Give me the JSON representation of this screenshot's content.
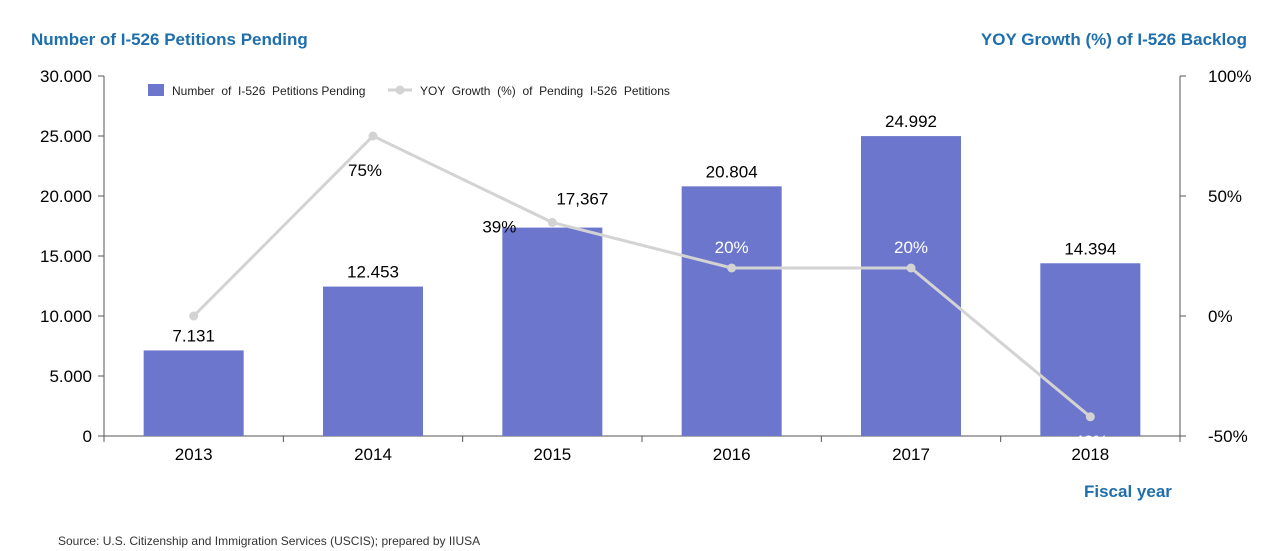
{
  "titles": {
    "left_axis_title": "Number of I-526 Petitions Pending",
    "right_axis_title": "YOY Growth (%) of I-526 Backlog",
    "x_axis_title": "Fiscal year",
    "source": "Source: U.S. Citizenship and Immigration Services (USCIS);  prepared  by IIUSA"
  },
  "colors": {
    "bar": "#6b76cc",
    "line": "#d3d3d3",
    "title_blue": "#1f6fad"
  },
  "chart_data": {
    "type": "bar",
    "categories": [
      "2013",
      "2014",
      "2015",
      "2016",
      "2017",
      "2018"
    ],
    "series": [
      {
        "name": "Number  of  I-526  Petitions Pending",
        "type": "bar",
        "axis": "left",
        "values": [
          7131,
          12453,
          17367,
          20804,
          24992,
          14394
        ],
        "labels": [
          "7.131",
          "12.453",
          "17,367",
          "20.804",
          "24.992",
          "14.394"
        ]
      },
      {
        "name": "YOY  Growth  (%)  of  Pending  I-526  Petitions",
        "type": "line",
        "axis": "right",
        "values": [
          0,
          75,
          39,
          20,
          20,
          -42
        ],
        "labels": [
          "",
          "75%",
          "39%",
          "20%",
          "20%",
          "-42%"
        ]
      }
    ],
    "y_left": {
      "min": 0,
      "max": 30000,
      "ticks": [
        0,
        5000,
        10000,
        15000,
        20000,
        25000,
        30000
      ],
      "tick_labels": [
        "0",
        "5.000",
        "10.000",
        "15.000",
        "20.000",
        "25.000",
        "30.000"
      ]
    },
    "y_right": {
      "min": -50,
      "max": 100,
      "ticks": [
        -50,
        0,
        50,
        100
      ],
      "tick_labels": [
        "-50%",
        "0%",
        "50%",
        "100%"
      ]
    },
    "legend_position": "top-left",
    "grid": false
  }
}
